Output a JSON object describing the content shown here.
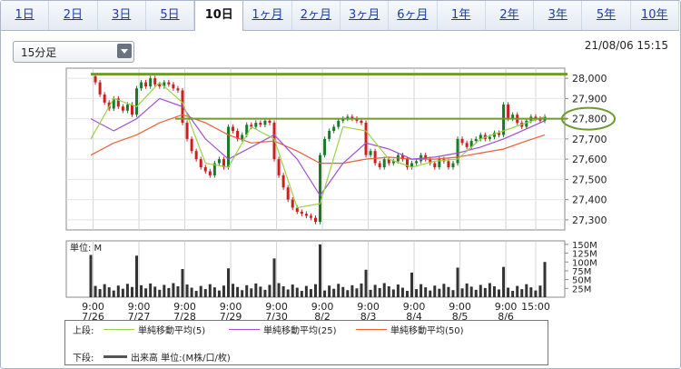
{
  "tabs": [
    "1日",
    "2日",
    "3日",
    "5日",
    "10日",
    "1ヶ月",
    "2ヶ月",
    "3ヶ月",
    "6ヶ月",
    "1年",
    "2年",
    "3年",
    "5年",
    "10年"
  ],
  "active_tab": 4,
  "interval_select": "15分足",
  "timestamp": "21/08/06 15:15",
  "volume_unit_label": "単位: M",
  "legend": {
    "upper_label": "上段:",
    "lower_label": "下段:",
    "lower_item": "出来高 単位:(M株/口/枚)",
    "series": [
      {
        "name": "単純移動平均(5)",
        "color": "#9bd14a"
      },
      {
        "name": "単純移動平均(25)",
        "color": "#a050d0"
      },
      {
        "name": "単純移動平均(50)",
        "color": "#e8603c"
      }
    ]
  },
  "colors": {
    "up": "#1a7a2a",
    "down": "#cc1f1f",
    "hline": "#6f9a2f",
    "circle": "#6f9a2f",
    "volume": "#333333"
  },
  "chart_data": {
    "type": "candlestick",
    "title": "",
    "price_ticks": [
      "28,000",
      "27,900",
      "27,800",
      "27,700",
      "27,600",
      "27,500",
      "27,400",
      "27,300"
    ],
    "price_tick_values": [
      28000,
      27900,
      27800,
      27700,
      27600,
      27500,
      27400,
      27300
    ],
    "ylim": [
      27250,
      28050
    ],
    "horizontal_lines": [
      28020,
      27800
    ],
    "highlighted_level": "27,800",
    "volume_ticks": [
      "150M",
      "125M",
      "100M",
      "75M",
      "50M",
      "25M"
    ],
    "volume_tick_values": [
      150,
      125,
      100,
      75,
      50,
      25
    ],
    "volume_ylim": [
      0,
      160
    ],
    "x_tick_labels": [
      {
        "time": "9:00",
        "date": "7/26"
      },
      {
        "time": "9:00",
        "date": "7/27"
      },
      {
        "time": "9:00",
        "date": "7/28"
      },
      {
        "time": "9:00",
        "date": "7/29"
      },
      {
        "time": "9:00",
        "date": "7/30"
      },
      {
        "time": "9:00",
        "date": "8/2"
      },
      {
        "time": "9:00",
        "date": "8/3"
      },
      {
        "time": "9:00",
        "date": "8/4"
      },
      {
        "time": "9:00",
        "date": "8/5"
      },
      {
        "time": "9:00",
        "date": "8/6"
      },
      {
        "time": "15:00",
        "date": ""
      }
    ],
    "price_path": [
      [
        0,
        28010
      ],
      [
        1,
        27980
      ],
      [
        2,
        27920
      ],
      [
        3,
        27880
      ],
      [
        4,
        27850
      ],
      [
        5,
        27900
      ],
      [
        6,
        27860
      ],
      [
        7,
        27840
      ],
      [
        8,
        27870
      ],
      [
        9,
        27820
      ],
      [
        10,
        27950
      ],
      [
        11,
        27980
      ],
      [
        12,
        27960
      ],
      [
        13,
        28000
      ],
      [
        14,
        27970
      ],
      [
        15,
        27960
      ],
      [
        16,
        27980
      ],
      [
        17,
        27970
      ],
      [
        18,
        27950
      ],
      [
        19,
        27940
      ],
      [
        20,
        27780
      ],
      [
        21,
        27700
      ],
      [
        22,
        27640
      ],
      [
        23,
        27600
      ],
      [
        24,
        27560
      ],
      [
        25,
        27540
      ],
      [
        26,
        27520
      ],
      [
        27,
        27580
      ],
      [
        28,
        27600
      ],
      [
        29,
        27560
      ],
      [
        30,
        27760
      ],
      [
        31,
        27740
      ],
      [
        32,
        27700
      ],
      [
        33,
        27720
      ],
      [
        34,
        27770
      ],
      [
        35,
        27760
      ],
      [
        36,
        27780
      ],
      [
        37,
        27770
      ],
      [
        38,
        27790
      ],
      [
        39,
        27780
      ],
      [
        40,
        27600
      ],
      [
        41,
        27520
      ],
      [
        42,
        27460
      ],
      [
        43,
        27400
      ],
      [
        44,
        27360
      ],
      [
        45,
        27340
      ],
      [
        46,
        27330
      ],
      [
        47,
        27320
      ],
      [
        48,
        27310
      ],
      [
        49,
        27290
      ],
      [
        50,
        27620
      ],
      [
        51,
        27700
      ],
      [
        52,
        27740
      ],
      [
        53,
        27760
      ],
      [
        54,
        27790
      ],
      [
        55,
        27800
      ],
      [
        56,
        27810
      ],
      [
        57,
        27800
      ],
      [
        58,
        27790
      ],
      [
        59,
        27780
      ],
      [
        60,
        27620
      ],
      [
        61,
        27640
      ],
      [
        62,
        27580
      ],
      [
        63,
        27560
      ],
      [
        64,
        27600
      ],
      [
        65,
        27580
      ],
      [
        66,
        27590
      ],
      [
        67,
        27620
      ],
      [
        68,
        27600
      ],
      [
        69,
        27560
      ],
      [
        70,
        27580
      ],
      [
        71,
        27590
      ],
      [
        72,
        27620
      ],
      [
        73,
        27600
      ],
      [
        74,
        27580
      ],
      [
        75,
        27560
      ],
      [
        76,
        27600
      ],
      [
        77,
        27590
      ],
      [
        78,
        27560
      ],
      [
        79,
        27580
      ],
      [
        80,
        27700
      ],
      [
        81,
        27680
      ],
      [
        82,
        27660
      ],
      [
        83,
        27690
      ],
      [
        84,
        27700
      ],
      [
        85,
        27720
      ],
      [
        86,
        27700
      ],
      [
        87,
        27710
      ],
      [
        88,
        27730
      ],
      [
        89,
        27720
      ],
      [
        90,
        27870
      ],
      [
        91,
        27800
      ],
      [
        92,
        27820
      ],
      [
        93,
        27780
      ],
      [
        94,
        27760
      ],
      [
        95,
        27790
      ],
      [
        96,
        27810
      ],
      [
        97,
        27800
      ],
      [
        98,
        27790
      ],
      [
        99,
        27810
      ]
    ],
    "sma5": [
      [
        0,
        27700
      ],
      [
        5,
        27900
      ],
      [
        10,
        27860
      ],
      [
        15,
        27980
      ],
      [
        20,
        27880
      ],
      [
        25,
        27580
      ],
      [
        30,
        27560
      ],
      [
        35,
        27760
      ],
      [
        40,
        27700
      ],
      [
        45,
        27360
      ],
      [
        50,
        27380
      ],
      [
        55,
        27760
      ],
      [
        60,
        27740
      ],
      [
        65,
        27600
      ],
      [
        70,
        27560
      ],
      [
        75,
        27590
      ],
      [
        80,
        27600
      ],
      [
        85,
        27700
      ],
      [
        90,
        27740
      ],
      [
        95,
        27780
      ],
      [
        99,
        27810
      ]
    ],
    "sma25": [
      [
        0,
        27800
      ],
      [
        5,
        27740
      ],
      [
        10,
        27800
      ],
      [
        15,
        27900
      ],
      [
        20,
        27860
      ],
      [
        25,
        27700
      ],
      [
        30,
        27600
      ],
      [
        35,
        27660
      ],
      [
        40,
        27720
      ],
      [
        45,
        27600
      ],
      [
        50,
        27420
      ],
      [
        55,
        27580
      ],
      [
        60,
        27680
      ],
      [
        65,
        27650
      ],
      [
        70,
        27600
      ],
      [
        75,
        27610
      ],
      [
        80,
        27630
      ],
      [
        85,
        27660
      ],
      [
        90,
        27700
      ],
      [
        95,
        27750
      ],
      [
        99,
        27790
      ]
    ],
    "sma50": [
      [
        0,
        27620
      ],
      [
        5,
        27680
      ],
      [
        10,
        27720
      ],
      [
        15,
        27780
      ],
      [
        20,
        27820
      ],
      [
        25,
        27780
      ],
      [
        30,
        27720
      ],
      [
        35,
        27680
      ],
      [
        40,
        27690
      ],
      [
        45,
        27640
      ],
      [
        50,
        27580
      ],
      [
        55,
        27580
      ],
      [
        60,
        27600
      ],
      [
        65,
        27610
      ],
      [
        70,
        27600
      ],
      [
        75,
        27600
      ],
      [
        80,
        27610
      ],
      [
        85,
        27630
      ],
      [
        90,
        27650
      ],
      [
        95,
        27690
      ],
      [
        99,
        27720
      ]
    ],
    "volume_spikes": [
      120,
      118,
      80,
      82,
      110,
      150,
      78,
      70,
      84,
      86
    ],
    "volume_close": 100
  }
}
